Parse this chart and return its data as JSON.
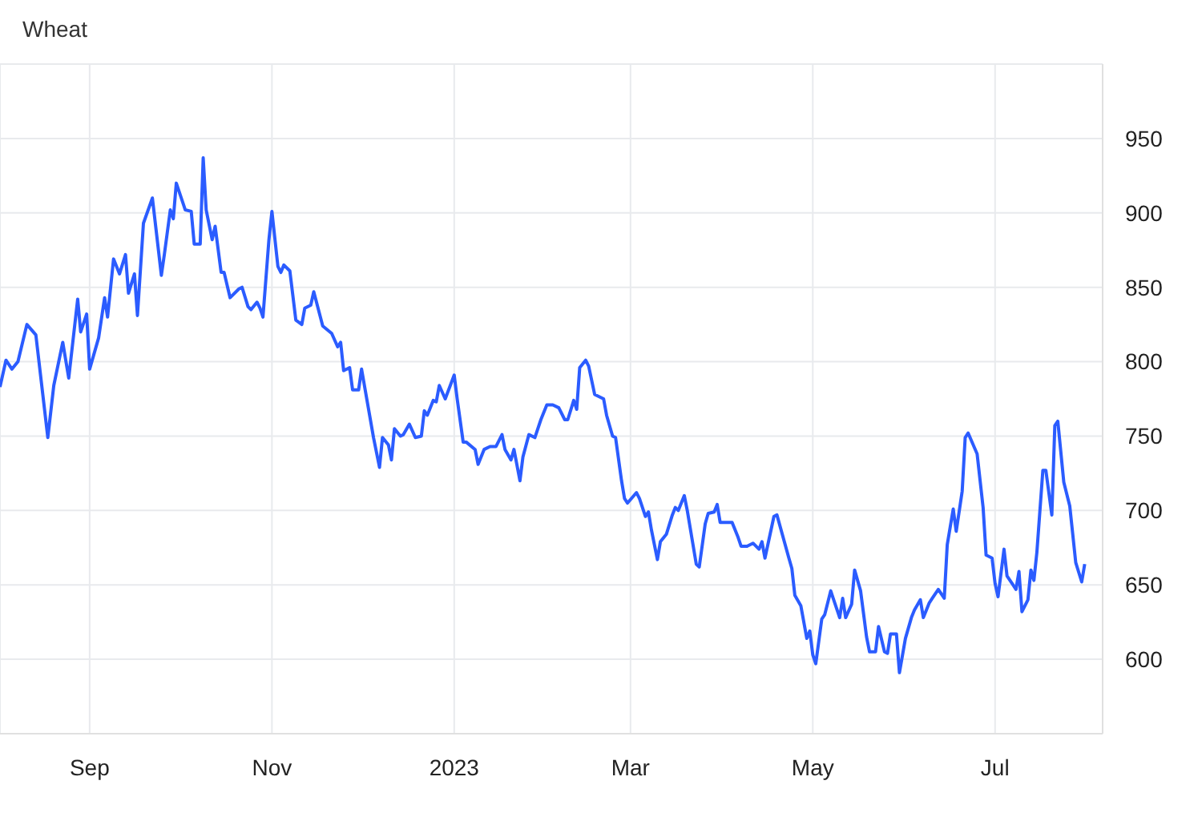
{
  "chart_data": {
    "type": "line",
    "title": "Wheat",
    "x": [
      "2022-08-02",
      "2022-08-04",
      "2022-08-06",
      "2022-08-08",
      "2022-08-11",
      "2022-08-14",
      "2022-08-18",
      "2022-08-20",
      "2022-08-23",
      "2022-08-25",
      "2022-08-28",
      "2022-08-29",
      "2022-08-31",
      "2022-09-01",
      "2022-09-04",
      "2022-09-06",
      "2022-09-07",
      "2022-09-09",
      "2022-09-11",
      "2022-09-13",
      "2022-09-14",
      "2022-09-16",
      "2022-09-17",
      "2022-09-19",
      "2022-09-22",
      "2022-09-25",
      "2022-09-26",
      "2022-09-28",
      "2022-09-29",
      "2022-09-30",
      "2022-10-03",
      "2022-10-05",
      "2022-10-06",
      "2022-10-08",
      "2022-10-09",
      "2022-10-10",
      "2022-10-12",
      "2022-10-13",
      "2022-10-15",
      "2022-10-16",
      "2022-10-18",
      "2022-10-21",
      "2022-10-22",
      "2022-10-24",
      "2022-10-25",
      "2022-10-27",
      "2022-10-28",
      "2022-10-29",
      "2022-10-31",
      "2022-11-01",
      "2022-11-03",
      "2022-11-04",
      "2022-11-05",
      "2022-11-07",
      "2022-11-09",
      "2022-11-11",
      "2022-11-12",
      "2022-11-14",
      "2022-11-15",
      "2022-11-18",
      "2022-11-21",
      "2022-11-23",
      "2022-11-24",
      "2022-11-25",
      "2022-11-27",
      "2022-11-28",
      "2022-11-30",
      "2022-12-01",
      "2022-12-03",
      "2022-12-05",
      "2022-12-07",
      "2022-12-08",
      "2022-12-10",
      "2022-12-11",
      "2022-12-12",
      "2022-12-14",
      "2022-12-15",
      "2022-12-17",
      "2022-12-19",
      "2022-12-21",
      "2022-12-22",
      "2022-12-23",
      "2022-12-25",
      "2022-12-26",
      "2022-12-27",
      "2022-12-29",
      "2023-01-01",
      "2023-01-02",
      "2023-01-04",
      "2023-01-05",
      "2023-01-08",
      "2023-01-09",
      "2023-01-11",
      "2023-01-13",
      "2023-01-15",
      "2023-01-17",
      "2023-01-18",
      "2023-01-20",
      "2023-01-21",
      "2023-01-23",
      "2023-01-24",
      "2023-01-26",
      "2023-01-28",
      "2023-01-30",
      "2023-02-01",
      "2023-02-03",
      "2023-02-05",
      "2023-02-07",
      "2023-02-08",
      "2023-02-10",
      "2023-02-11",
      "2023-02-12",
      "2023-02-14",
      "2023-02-15",
      "2023-02-17",
      "2023-02-20",
      "2023-02-21",
      "2023-02-23",
      "2023-02-24",
      "2023-02-26",
      "2023-02-27",
      "2023-02-28",
      "2023-03-03",
      "2023-03-04",
      "2023-03-06",
      "2023-03-07",
      "2023-03-08",
      "2023-03-10",
      "2023-03-11",
      "2023-03-13",
      "2023-03-15",
      "2023-03-16",
      "2023-03-17",
      "2023-03-19",
      "2023-03-20",
      "2023-03-23",
      "2023-03-24",
      "2023-03-26",
      "2023-03-27",
      "2023-03-29",
      "2023-03-30",
      "2023-03-31",
      "2023-04-04",
      "2023-04-06",
      "2023-04-07",
      "2023-04-09",
      "2023-04-11",
      "2023-04-13",
      "2023-04-14",
      "2023-04-15",
      "2023-04-18",
      "2023-04-19",
      "2023-04-23",
      "2023-04-24",
      "2023-04-25",
      "2023-04-27",
      "2023-04-29",
      "2023-04-30",
      "2023-05-01",
      "2023-05-02",
      "2023-05-04",
      "2023-05-05",
      "2023-05-07",
      "2023-05-08",
      "2023-05-10",
      "2023-05-11",
      "2023-05-12",
      "2023-05-14",
      "2023-05-15",
      "2023-05-17",
      "2023-05-19",
      "2023-05-20",
      "2023-05-22",
      "2023-05-23",
      "2023-05-25",
      "2023-05-26",
      "2023-05-27",
      "2023-05-29",
      "2023-05-30",
      "2023-06-01",
      "2023-06-03",
      "2023-06-04",
      "2023-06-06",
      "2023-06-07",
      "2023-06-09",
      "2023-06-10",
      "2023-06-12",
      "2023-06-14",
      "2023-06-15",
      "2023-06-17",
      "2023-06-18",
      "2023-06-20",
      "2023-06-21",
      "2023-06-22",
      "2023-06-25",
      "2023-06-27",
      "2023-06-28",
      "2023-06-30",
      "2023-07-01",
      "2023-07-02",
      "2023-07-04",
      "2023-07-05",
      "2023-07-07",
      "2023-07-08",
      "2023-07-09",
      "2023-07-10",
      "2023-07-12",
      "2023-07-13",
      "2023-07-14",
      "2023-07-15",
      "2023-07-17",
      "2023-07-18",
      "2023-07-20",
      "2023-07-21",
      "2023-07-22",
      "2023-07-24",
      "2023-07-26",
      "2023-07-28",
      "2023-07-30",
      "2023-07-31"
    ],
    "series": [
      {
        "color": "#2b5cff",
        "values": [
          783,
          801,
          795,
          800,
          825,
          818,
          749,
          784,
          813,
          789,
          842,
          820,
          832,
          795,
          816,
          843,
          830,
          869,
          859,
          872,
          846,
          859,
          831,
          893,
          910,
          858,
          872,
          902,
          896,
          920,
          902,
          901,
          879,
          879,
          937,
          902,
          882,
          891,
          860,
          860,
          843,
          849,
          850,
          837,
          835,
          840,
          836,
          830,
          882,
          901,
          864,
          860,
          865,
          861,
          828,
          825,
          836,
          838,
          847,
          824,
          819,
          810,
          813,
          794,
          796,
          781,
          781,
          795,
          772,
          749,
          729,
          749,
          744,
          734,
          755,
          750,
          751,
          758,
          749,
          750,
          767,
          764,
          774,
          773,
          784,
          775,
          791,
          775,
          746,
          746,
          741,
          731,
          741,
          743,
          743,
          751,
          741,
          734,
          741,
          720,
          736,
          751,
          749,
          761,
          771,
          771,
          769,
          761,
          761,
          774,
          768,
          796,
          801,
          797,
          778,
          775,
          764,
          750,
          749,
          720,
          708,
          705,
          712,
          708,
          696,
          699,
          687,
          667,
          679,
          684,
          697,
          702,
          700,
          710,
          700,
          664,
          662,
          691,
          698,
          699,
          704,
          692,
          692,
          682,
          676,
          676,
          678,
          674,
          679,
          668,
          696,
          697,
          668,
          661,
          643,
          636,
          614,
          619,
          603,
          597,
          627,
          630,
          646,
          640,
          628,
          641,
          628,
          637,
          660,
          646,
          615,
          605,
          605,
          622,
          605,
          604,
          617,
          617,
          591,
          614,
          628,
          633,
          640,
          628,
          638,
          641,
          647,
          641,
          677,
          701,
          686,
          713,
          749,
          752,
          738,
          702,
          670,
          668,
          651,
          642,
          674,
          656,
          650,
          647,
          659,
          632,
          640,
          660,
          653,
          672,
          727,
          727,
          697,
          757,
          760,
          719,
          703,
          665,
          652,
          664
        ]
      }
    ],
    "xlim": [
      "2022-08-02",
      "2023-08-06"
    ],
    "xticks": [
      {
        "value": "2022-09-01",
        "label": "Sep"
      },
      {
        "value": "2022-11-01",
        "label": "Nov"
      },
      {
        "value": "2023-01-01",
        "label": "2023"
      },
      {
        "value": "2023-03-01",
        "label": "Mar"
      },
      {
        "value": "2023-05-01",
        "label": "May"
      },
      {
        "value": "2023-07-01",
        "label": "Jul"
      }
    ],
    "ylim": [
      550,
      1000
    ],
    "yticks": [
      600,
      650,
      700,
      750,
      800,
      850,
      900,
      950
    ],
    "grid": true
  }
}
